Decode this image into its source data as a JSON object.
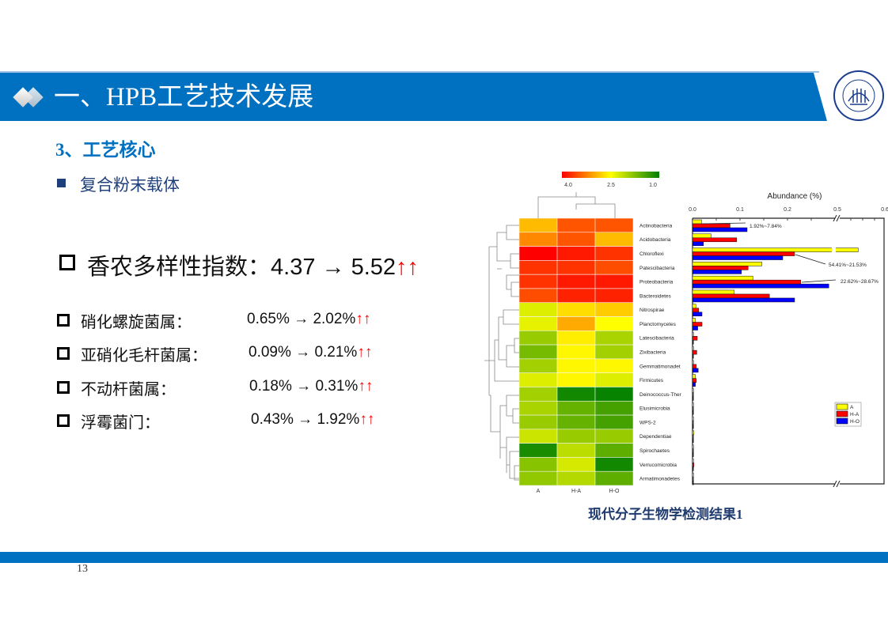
{
  "header": {
    "title": "一、HPB工艺技术发展",
    "logo_text": "TONGJI UNIVERSITY 1907"
  },
  "section": {
    "subtitle": "3、工艺核心",
    "bullet": "复合粉末载体"
  },
  "shannon": {
    "label": "香农多样性指数：",
    "from": "4.37",
    "arrow": "→",
    "to": "5.52",
    "trend": "↑↑"
  },
  "genera": [
    {
      "label": "硝化螺旋菌属：",
      "from": "0.65%",
      "to": "2.02%",
      "trend": "↑↑"
    },
    {
      "label": "亚硝化毛杆菌属：",
      "from": "0.09%",
      "to": "0.21%",
      "trend": "↑↑"
    },
    {
      "label": "不动杆菌属：",
      "from": "0.18%",
      "to": "0.31%",
      "trend": "↑↑"
    },
    {
      "label": "浮霉菌门：",
      "from": "0.43%",
      "to": "1.92%",
      "trend": "↑↑"
    }
  ],
  "caption": "现代分子生物学检测结果1",
  "page_number": "13",
  "colors": {
    "brand_blue": "#0070c0",
    "A": "#ffff00",
    "H-A": "#ff0000",
    "H-O": "#0000ff"
  },
  "chart_data": [
    {
      "type": "heatmap",
      "colorbar": {
        "ticks": [
          "4.0",
          "2.5",
          "1.0"
        ],
        "range": [
          1.0,
          4.0
        ],
        "colors": [
          "#ff0000",
          "#ffff00",
          "#007f00"
        ]
      },
      "columns": [
        "A",
        "H-A",
        "H-O"
      ],
      "rows": [
        "Actinobacteria",
        "Acidobacteria",
        "Chloroflexi",
        "Patescibacteria",
        "Proteobacteria",
        "Bacteroidetes",
        "Nitrospirae",
        "Planctomycetes",
        "Latescibacteria",
        "Zixibacteria",
        "Gemmatimonadet",
        "Firmicutes",
        "Deinococcus-Ther",
        "Elusimicrobia",
        "WPS-2",
        "Dependentiae",
        "Spirochaetes",
        "Verrucomicrobia",
        "Armatimonadetes"
      ],
      "values": [
        [
          2.9,
          3.5,
          3.5
        ],
        [
          3.2,
          3.5,
          2.9
        ],
        [
          4.0,
          3.85,
          3.7
        ],
        [
          3.7,
          3.7,
          3.55
        ],
        [
          3.7,
          3.85,
          3.85
        ],
        [
          3.55,
          3.8,
          3.8
        ],
        [
          2.3,
          2.7,
          2.8
        ],
        [
          2.35,
          3.0,
          2.5
        ],
        [
          1.9,
          2.6,
          2.0
        ],
        [
          1.7,
          2.55,
          1.95
        ],
        [
          1.95,
          2.55,
          2.55
        ],
        [
          2.3,
          2.55,
          2.3
        ],
        [
          1.95,
          1.1,
          1.05
        ],
        [
          2.0,
          1.6,
          1.4
        ],
        [
          1.9,
          1.6,
          1.4
        ],
        [
          2.2,
          1.9,
          1.9
        ],
        [
          1.15,
          2.1,
          1.55
        ],
        [
          1.8,
          2.25,
          1.1
        ],
        [
          1.85,
          2.05,
          1.55
        ]
      ]
    },
    {
      "type": "bar",
      "orientation": "horizontal",
      "title": "Abundance (%)",
      "xticks": [
        "0.0",
        "0.1",
        "0.2",
        "0.5",
        "0.6"
      ],
      "axis_break": [
        0.3,
        0.5
      ],
      "xlim": [
        0,
        0.6
      ],
      "categories": [
        "Actinobacteria",
        "Acidobacteria",
        "Chloroflexi",
        "Patescibacteria",
        "Proteobacteria",
        "Bacteroidetes",
        "Nitrospirae",
        "Planctomycetes",
        "Latescibacteria",
        "Zixibacteria",
        "Gemmatimonadet",
        "Firmicutes",
        "Deinococcus-Ther",
        "Elusimicrobia",
        "WPS-2",
        "Dependentiae",
        "Spirochaetes",
        "Verrucomicrobia",
        "Armatimonadetes"
      ],
      "series": [
        {
          "name": "A",
          "values": [
            0.019,
            0.039,
            0.544,
            0.146,
            0.127,
            0.088,
            0.007,
            0.006,
            0.001,
            0.001,
            0.001,
            0.006,
            0.001,
            0.001,
            0.001,
            0.003,
            0.001,
            0.001,
            0.001
          ]
        },
        {
          "name": "H-A",
          "values": [
            0.079,
            0.093,
            0.215,
            0.117,
            0.228,
            0.162,
            0.013,
            0.02,
            0.01,
            0.009,
            0.008,
            0.008,
            0.001,
            0.001,
            0.001,
            0.001,
            0.002,
            0.003,
            0.002
          ]
        },
        {
          "name": "H-O",
          "values": [
            0.115,
            0.023,
            0.19,
            0.103,
            0.287,
            0.215,
            0.02,
            0.011,
            0.002,
            0.001,
            0.012,
            0.006,
            0.001,
            0.001,
            0.001,
            0.001,
            0.001,
            0.001,
            0.001
          ]
        }
      ],
      "annotations": [
        "1.92%~7.84%",
        "54.41%~21.53%",
        "22.62%~28.67%"
      ],
      "legend": [
        "A",
        "H-A",
        "H-O"
      ],
      "legend_position": "right"
    }
  ]
}
